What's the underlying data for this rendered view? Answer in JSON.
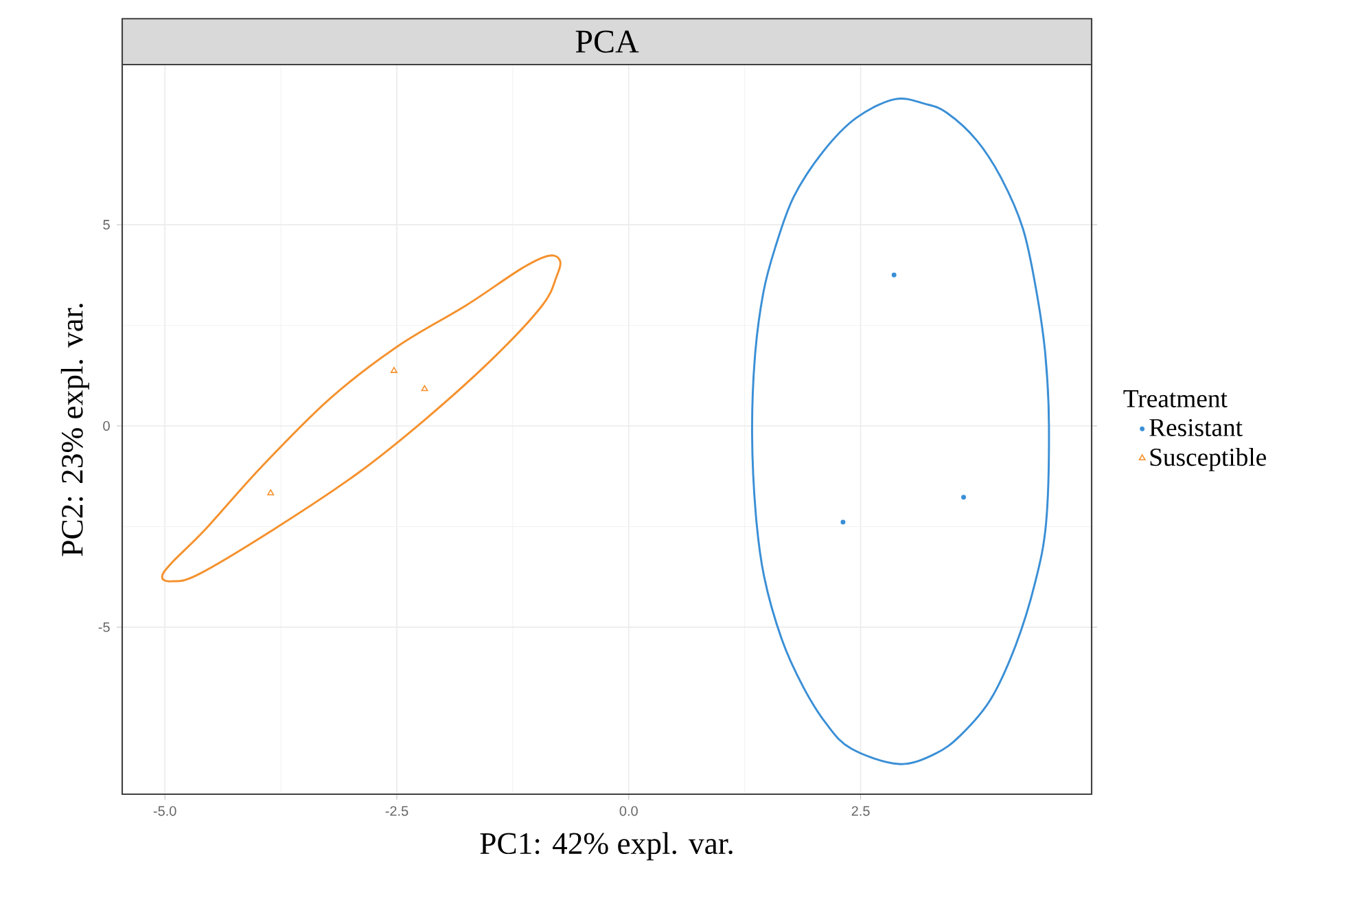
{
  "chart_data": {
    "type": "scatter",
    "title": "PCA",
    "xlabel": "PC1: 42% expl. var.",
    "ylabel": "PC2: 23% expl. var.",
    "legend_title": "Treatment",
    "xlim": [
      -5.46,
      4.99
    ],
    "ylim": [
      -9.15,
      8.98
    ],
    "xticks": [
      {
        "value": -5,
        "label": "-5.0"
      },
      {
        "value": -2.5,
        "label": "-2.5"
      },
      {
        "value": 0,
        "label": "0.0"
      },
      {
        "value": 2.5,
        "label": "2.5"
      }
    ],
    "yticks": [
      -5,
      0,
      5
    ],
    "grid": true,
    "legend": "right",
    "series": [
      {
        "name": "Resistant",
        "color": "#3a8fd6",
        "marker": "circle",
        "x": [
          2.86,
          2.31,
          3.61
        ],
        "values": [
          3.75,
          -2.39,
          -1.77
        ]
      },
      {
        "name": "Susceptible",
        "color": "#f5912d",
        "marker": "triangle",
        "x": [
          -2.53,
          -2.2,
          -3.86
        ],
        "values": [
          1.37,
          0.92,
          -1.67
        ]
      }
    ]
  }
}
